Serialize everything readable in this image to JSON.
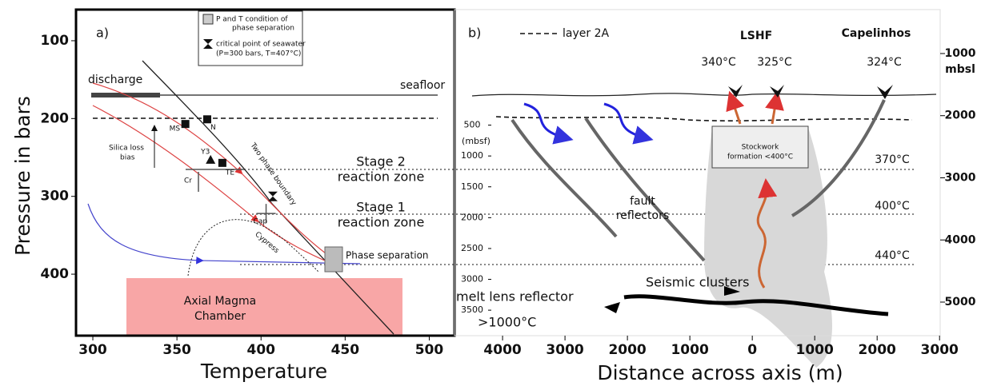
{
  "chart_data": [
    {
      "type": "phase",
      "panel_label": "a)",
      "x_label": "Temperature",
      "y_label": "Pressure in bars",
      "xlim": [
        290,
        515
      ],
      "xticks": [
        300,
        350,
        400,
        450,
        500
      ],
      "ylim": [
        60,
        479
      ],
      "y_inverted": true,
      "yticks": [
        100,
        200,
        300,
        400
      ],
      "legend": [
        "P and T condition of",
        "phase separation",
        "critical point of seawater",
        "(P=300 bars, T=407°C)"
      ],
      "points": [
        {
          "label": "MS",
          "x": 355,
          "y": 207,
          "marker": "square"
        },
        {
          "label": "N",
          "x": 368,
          "y": 201,
          "marker": "square"
        },
        {
          "label": "Y3",
          "x": 370,
          "y": 253,
          "marker": "triangle"
        },
        {
          "label": "TE",
          "x": 377,
          "y": 257,
          "marker": "square"
        },
        {
          "label": "Cap",
          "x": 403,
          "y": 322,
          "marker": "cross"
        }
      ],
      "critical_point": {
        "x": 407,
        "y": 300
      },
      "annotations": [
        "discharge",
        "seafloor",
        "Two phase boundary",
        "Silica loss",
        "bias",
        "Cr",
        "Cypress",
        "Phase separation",
        "Axial Magma",
        "Chamber"
      ]
    },
    {
      "type": "section",
      "panel_label": "b)",
      "x_label": "Distance across axis (m)",
      "xlim": [
        -4770,
        3010
      ],
      "xticks": [
        {
          "value": -4000,
          "label": "4000"
        },
        {
          "value": -3000,
          "label": "3000"
        },
        {
          "value": -2000,
          "label": "2000"
        },
        {
          "value": -1000,
          "label": "1000"
        },
        0,
        1000,
        2000,
        3000
      ],
      "ylim": [
        293,
        5540
      ],
      "y_inverted": true,
      "yticks": [
        1000,
        2000,
        3000,
        4000,
        5000
      ],
      "y_unit": "mbsl",
      "y2lim": [
        -1373,
        3913
      ],
      "y2ticks": [
        500,
        1000,
        1500,
        2000,
        2500,
        3000,
        3500
      ],
      "y2_unit": "(mbsf)",
      "annotations": [
        "layer 2A",
        "LSHF",
        "Capelinhos",
        "340°C",
        "325°C",
        "324°C",
        "Stockwork",
        "formation <400°C",
        "370°C",
        "400°C",
        "440°C",
        "fault",
        "reflectors",
        "Seismic clusters",
        "melt lens reflector",
        ">1000°C"
      ]
    }
  ],
  "stage_labels": [
    [
      "Stage 2",
      "reaction zone"
    ],
    [
      "Stage 1",
      "reaction zone"
    ]
  ]
}
